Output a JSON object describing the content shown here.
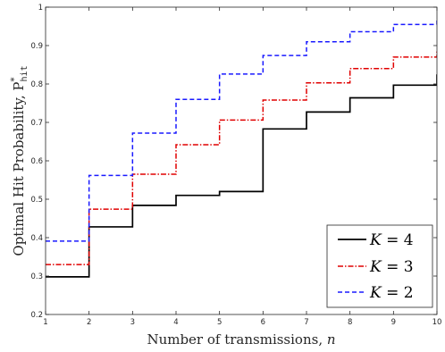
{
  "chart_data": {
    "type": "line",
    "step": true,
    "xlabel": "Number of transmissions, n",
    "ylabel": "Optimal Hit Probability, P*hit",
    "xlim": [
      1,
      10
    ],
    "ylim": [
      0.2,
      1
    ],
    "xticks": [
      "1",
      "2",
      "3",
      "4",
      "5",
      "6",
      "7",
      "8",
      "9",
      "10"
    ],
    "yticks": [
      "0.2",
      "0.3",
      "0.4",
      "0.5",
      "0.6",
      "0.7",
      "0.8",
      "0.9",
      "1"
    ],
    "grid": false,
    "legend_position": "bottom-right",
    "x": [
      1,
      2,
      3,
      4,
      5,
      6,
      7,
      8,
      9,
      10
    ],
    "series": [
      {
        "name": "K = 4",
        "color": "#000000",
        "dash": "solid",
        "values": [
          0.298,
          0.428,
          0.484,
          0.51,
          0.52,
          0.683,
          0.727,
          0.764,
          0.797,
          0.825
        ]
      },
      {
        "name": "K = 3",
        "color": "#e00000",
        "dash": "dashdot",
        "values": [
          0.33,
          0.474,
          0.565,
          0.642,
          0.706,
          0.758,
          0.803,
          0.84,
          0.87,
          0.888
        ]
      },
      {
        "name": "K = 2",
        "color": "#1a1aff",
        "dash": "dashed",
        "values": [
          0.391,
          0.562,
          0.672,
          0.76,
          0.826,
          0.874,
          0.91,
          0.936,
          0.955,
          0.965
        ]
      }
    ]
  },
  "labels": {
    "xlabel_main": "Number of transmissions,",
    "xlabel_var": "n",
    "ylabel_main": "Optimal Hit Probability,",
    "ylabel_sym": "P",
    "ylabel_sup": "*",
    "ylabel_sub": "hit"
  },
  "legend": [
    {
      "var": "K",
      "rest": " = 4"
    },
    {
      "var": "K",
      "rest": " = 3"
    },
    {
      "var": "K",
      "rest": " = 2"
    }
  ]
}
